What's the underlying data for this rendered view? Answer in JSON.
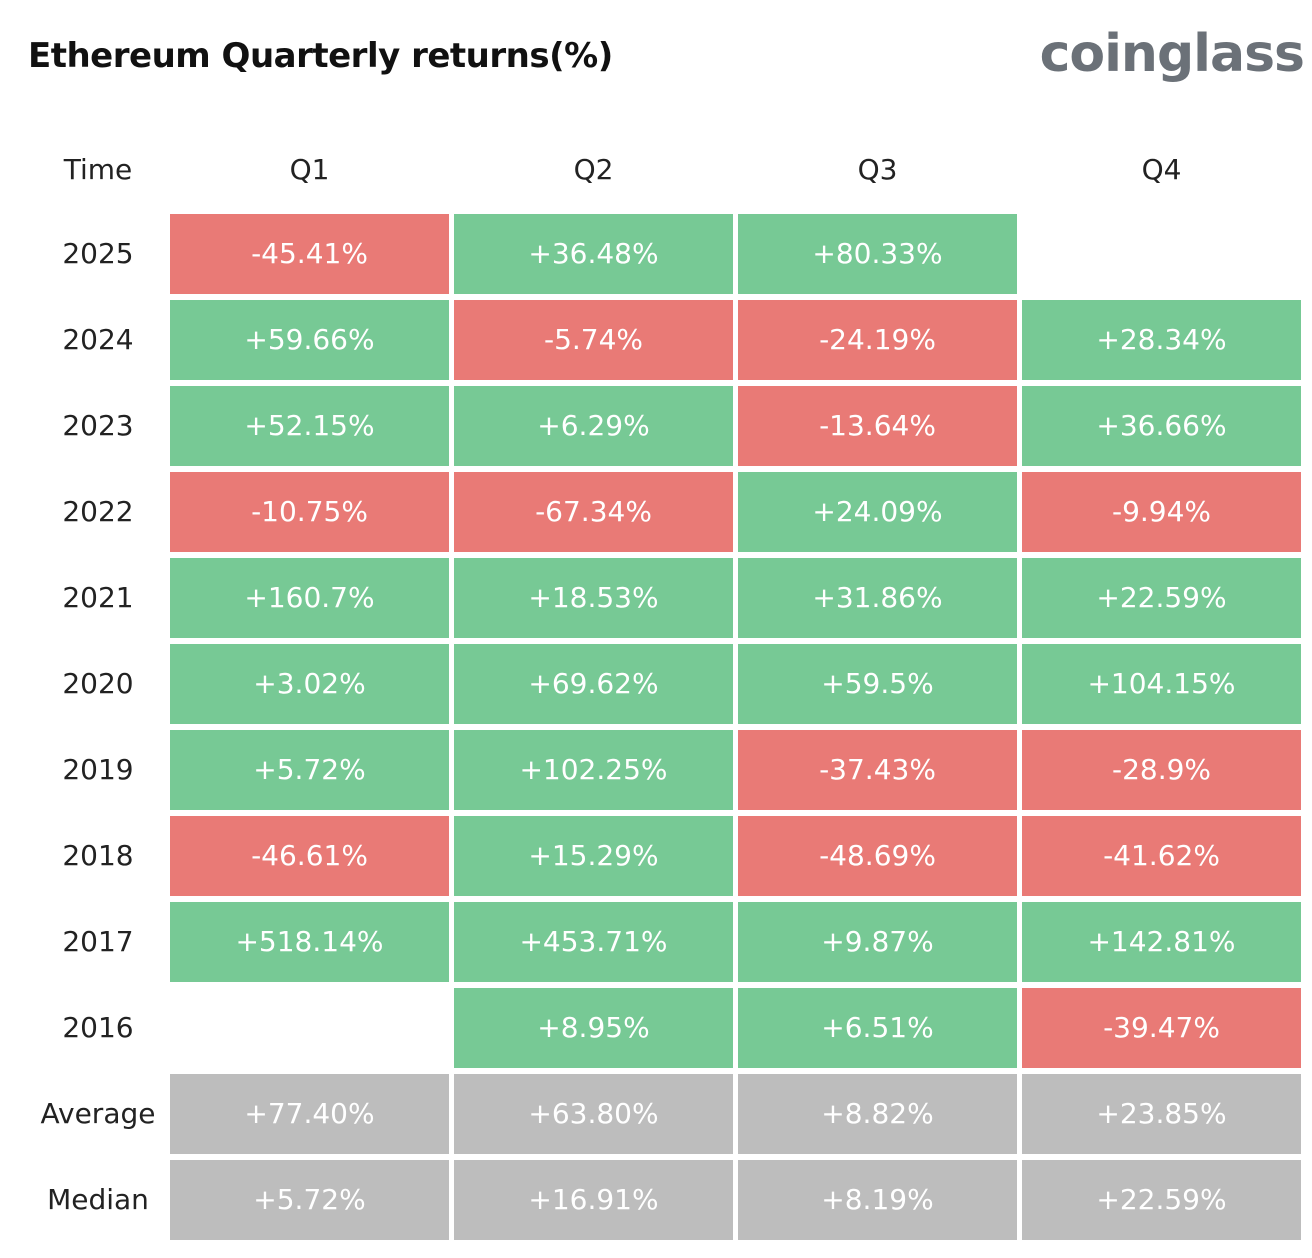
{
  "header": {
    "title": "Ethereum Quarterly returns(%)",
    "brand": "coinglass"
  },
  "colors": {
    "positive": "#77c995",
    "negative": "#e97a76",
    "summary": "#bdbdbd"
  },
  "chart_data": {
    "type": "table",
    "title": "Ethereum Quarterly returns(%)",
    "columns": [
      "Time",
      "Q1",
      "Q2",
      "Q3",
      "Q4"
    ],
    "rows": [
      {
        "label": "2025",
        "values": [
          "-45.41%",
          "+36.48%",
          "+80.33%",
          ""
        ]
      },
      {
        "label": "2024",
        "values": [
          "+59.66%",
          "-5.74%",
          "-24.19%",
          "+28.34%"
        ]
      },
      {
        "label": "2023",
        "values": [
          "+52.15%",
          "+6.29%",
          "-13.64%",
          "+36.66%"
        ]
      },
      {
        "label": "2022",
        "values": [
          "-10.75%",
          "-67.34%",
          "+24.09%",
          "-9.94%"
        ]
      },
      {
        "label": "2021",
        "values": [
          "+160.7%",
          "+18.53%",
          "+31.86%",
          "+22.59%"
        ]
      },
      {
        "label": "2020",
        "values": [
          "+3.02%",
          "+69.62%",
          "+59.5%",
          "+104.15%"
        ]
      },
      {
        "label": "2019",
        "values": [
          "+5.72%",
          "+102.25%",
          "-37.43%",
          "-28.9%"
        ]
      },
      {
        "label": "2018",
        "values": [
          "-46.61%",
          "+15.29%",
          "-48.69%",
          "-41.62%"
        ]
      },
      {
        "label": "2017",
        "values": [
          "+518.14%",
          "+453.71%",
          "+9.87%",
          "+142.81%"
        ]
      },
      {
        "label": "2016",
        "values": [
          "",
          "+8.95%",
          "+6.51%",
          "-39.47%"
        ]
      }
    ],
    "summary": [
      {
        "label": "Average",
        "values": [
          "+77.40%",
          "+63.80%",
          "+8.82%",
          "+23.85%"
        ]
      },
      {
        "label": "Median",
        "values": [
          "+5.72%",
          "+16.91%",
          "+8.19%",
          "+22.59%"
        ]
      }
    ]
  }
}
